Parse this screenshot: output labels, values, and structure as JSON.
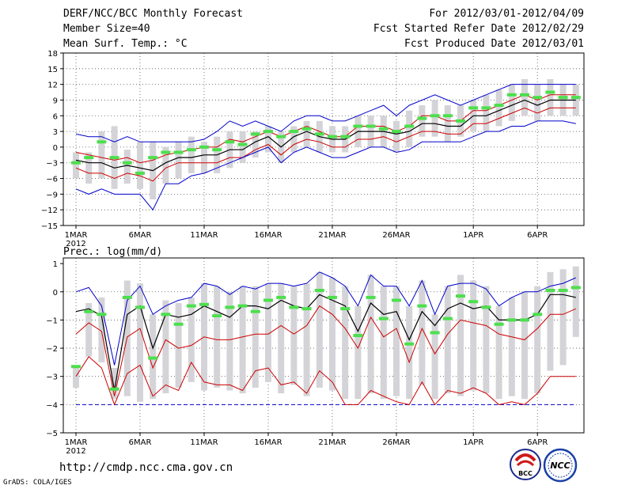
{
  "header": {
    "title": "DERF/NCC/BCC Monthly Forecast",
    "member_size": "Member Size=40",
    "top_label": "Mean Surf. Temp.: °C",
    "period": "For 2012/03/01-2012/04/09",
    "refer_date": "Fcst Started Refer Date 2012/02/29",
    "produced": "Fcst Produced Date 2012/03/01"
  },
  "footer": {
    "url": "http://cmdp.ncc.cma.gov.cn",
    "grads": "GrADS: COLA/IGES",
    "logo_bcc": "BCC",
    "logo_ncc": "NCC"
  },
  "colors": {
    "obs": "#4ddf4d",
    "box": "#d4d4d8",
    "blue": "#0000cc",
    "red": "#cc0000",
    "mean": "#000000"
  },
  "chart_data": [
    {
      "type": "line",
      "title": "Mean Surf. Temp.: °C",
      "x_ticks": [
        "1MAR",
        "6MAR",
        "11MAR",
        "16MAR",
        "21MAR",
        "26MAR",
        "1APR",
        "6APR"
      ],
      "x_tick_days": [
        0,
        5,
        10,
        15,
        20,
        25,
        31,
        36
      ],
      "x_year_label": "2012",
      "ylim": [
        -15,
        18
      ],
      "y_ticks": [
        -15,
        -12,
        -9,
        -6,
        -3,
        0,
        3,
        6,
        9,
        12,
        15,
        18
      ],
      "y_tick_labels": [
        "−15",
        "−12",
        "−9",
        "−6",
        "−3",
        "0",
        "3",
        "6",
        "9",
        "12",
        "15",
        "18"
      ],
      "grid": true,
      "days": [
        0,
        1,
        2,
        3,
        4,
        5,
        6,
        7,
        8,
        9,
        10,
        11,
        12,
        13,
        14,
        15,
        16,
        17,
        18,
        19,
        20,
        21,
        22,
        23,
        24,
        25,
        26,
        27,
        28,
        29,
        30,
        31,
        32,
        33,
        34,
        35,
        36,
        37,
        38,
        39
      ],
      "series": [
        {
          "name": "max",
          "color": "blue",
          "values": [
            2.5,
            2,
            2,
            1,
            2,
            1,
            1,
            1,
            1,
            1,
            1.5,
            3,
            5,
            4,
            5,
            4,
            3,
            5,
            6,
            6,
            5,
            5,
            6,
            7,
            8,
            6,
            8,
            9,
            10,
            9,
            8,
            9,
            10,
            11,
            12,
            12,
            12,
            12,
            12,
            12
          ]
        },
        {
          "name": "upper",
          "color": "red",
          "values": [
            -1,
            -1.5,
            -2,
            -2.5,
            -2,
            -3,
            -2.5,
            -1.5,
            -1,
            -0.5,
            0,
            0,
            1.5,
            1,
            2,
            3,
            2,
            3,
            4,
            3,
            2,
            2,
            4,
            4,
            4,
            3,
            4,
            6,
            6,
            5,
            5,
            7,
            7,
            8,
            9,
            10,
            9,
            10,
            10,
            10
          ]
        },
        {
          "name": "mean",
          "color": "mean",
          "values": [
            -2.5,
            -3,
            -3,
            -4,
            -3.5,
            -4,
            -4.5,
            -3,
            -2,
            -2,
            -1.5,
            -1.5,
            -0.5,
            -0.5,
            1,
            2,
            0,
            2,
            3,
            2,
            1.5,
            1.5,
            3,
            3,
            3,
            2.5,
            3,
            4.5,
            4.5,
            4,
            4,
            6,
            6,
            7,
            8,
            9,
            8,
            9,
            9,
            9
          ]
        },
        {
          "name": "lower",
          "color": "red",
          "values": [
            -4,
            -5,
            -5,
            -6,
            -5,
            -5.5,
            -6.5,
            -4,
            -3,
            -3,
            -3,
            -3,
            -2,
            -2,
            -0.5,
            0.5,
            -1.5,
            0.5,
            1.5,
            1,
            0,
            0,
            1.5,
            1.5,
            2,
            1,
            2,
            3,
            3,
            2.5,
            2.5,
            4.5,
            4.5,
            5.5,
            6.5,
            7.5,
            6.5,
            7.5,
            7.5,
            7.5
          ]
        },
        {
          "name": "min",
          "color": "blue",
          "values": [
            -8,
            -9,
            -8,
            -9,
            -9,
            -9,
            -12,
            -7,
            -7,
            -5.5,
            -5,
            -4,
            -3,
            -2,
            -1,
            0,
            -3,
            -1,
            0,
            -1,
            -2,
            -2,
            -1,
            0,
            0,
            -1,
            -0.5,
            1,
            1,
            1,
            1,
            2,
            3,
            3,
            4,
            4,
            5,
            5,
            5,
            4.5
          ]
        },
        {
          "name": "observed",
          "color": "obs",
          "values": [
            -3,
            -2,
            1,
            -2,
            -3,
            -5,
            -2,
            -1,
            -1,
            -0.5,
            0,
            -0.5,
            1,
            0.5,
            2.5,
            3,
            2,
            3,
            3.5,
            2.5,
            2,
            2,
            4,
            4,
            3.5,
            3,
            4,
            5.5,
            6,
            6,
            5,
            7.5,
            7.5,
            8,
            10,
            10,
            9.5,
            10.5,
            9.5,
            9.5
          ]
        }
      ],
      "boxes": {
        "name": "ensemble spread",
        "high": [
          -1,
          -1,
          3,
          4,
          -0.5,
          1,
          1,
          0,
          1,
          2,
          1,
          2,
          3,
          3,
          3,
          4,
          3,
          4,
          5,
          5,
          4,
          4,
          6,
          6,
          6,
          5,
          7,
          8,
          9,
          8,
          8,
          9,
          10,
          11,
          12,
          13,
          12,
          13,
          12,
          12
        ],
        "low": [
          -6,
          -7,
          -6,
          -8,
          -7,
          -8,
          -10,
          -7,
          -6,
          -5,
          -5,
          -5,
          -4,
          -3,
          -2,
          -1,
          -3,
          -1,
          0,
          -1,
          -1,
          -1,
          0,
          0,
          0,
          -1,
          0,
          2,
          2,
          1,
          2,
          3,
          3,
          4,
          5,
          6,
          5,
          6,
          6,
          6
        ]
      }
    },
    {
      "type": "line",
      "title": "Prec.: log(mm/d)",
      "x_ticks": [
        "1MAR",
        "6MAR",
        "11MAR",
        "16MAR",
        "21MAR",
        "26MAR",
        "1APR",
        "6APR"
      ],
      "x_tick_days": [
        0,
        5,
        10,
        15,
        20,
        25,
        31,
        36
      ],
      "x_year_label": "2012",
      "ylim": [
        -5,
        1.2
      ],
      "y_ticks": [
        -5,
        -4,
        -3,
        -2,
        -1,
        0,
        1
      ],
      "y_tick_labels": [
        "−5",
        "−4",
        "−3",
        "−2",
        "−1",
        "0",
        "1"
      ],
      "grid": true,
      "floor_line": -4,
      "days": [
        0,
        1,
        2,
        3,
        4,
        5,
        6,
        7,
        8,
        9,
        10,
        11,
        12,
        13,
        14,
        15,
        16,
        17,
        18,
        19,
        20,
        21,
        22,
        23,
        24,
        25,
        26,
        27,
        28,
        29,
        30,
        31,
        32,
        33,
        34,
        35,
        36,
        37,
        38,
        39
      ],
      "series": [
        {
          "name": "max",
          "color": "blue",
          "values": [
            0,
            0.15,
            -0.5,
            -2.6,
            -0.3,
            0.2,
            -0.8,
            -0.5,
            -0.3,
            -0.2,
            0.3,
            0.2,
            -0.1,
            0.2,
            0.1,
            0.3,
            0.3,
            0.2,
            0.3,
            0.7,
            0.5,
            0.2,
            -0.5,
            0.6,
            0.2,
            0.2,
            -0.5,
            0.4,
            -0.8,
            0.2,
            0.3,
            0.3,
            0.1,
            -0.5,
            -0.2,
            0,
            0,
            0.2,
            0.3,
            0.5
          ]
        },
        {
          "name": "mean",
          "color": "mean",
          "values": [
            -0.7,
            -0.6,
            -0.85,
            -3.5,
            -0.8,
            -0.5,
            -2,
            -0.8,
            -0.9,
            -0.8,
            -0.5,
            -0.7,
            -0.9,
            -0.5,
            -0.5,
            -0.6,
            -0.3,
            -0.5,
            -0.6,
            -0.1,
            -0.3,
            -0.5,
            -1.4,
            -0.4,
            -0.8,
            -0.7,
            -1.7,
            -0.7,
            -1.2,
            -0.6,
            -0.4,
            -0.6,
            -0.5,
            -1,
            -1,
            -1,
            -0.8,
            -0.1,
            -0.1,
            -0.2
          ]
        },
        {
          "name": "upper",
          "color": "red",
          "values": [
            -1.5,
            -1.1,
            -1.4,
            -3.7,
            -1.6,
            -1.3,
            -2.7,
            -1.7,
            -2,
            -1.9,
            -1.6,
            -1.7,
            -1.7,
            -1.6,
            -1.5,
            -1.5,
            -1.2,
            -1.5,
            -1.2,
            -0.5,
            -0.8,
            -1.3,
            -2,
            -0.9,
            -1.6,
            -1.3,
            -2.5,
            -1.3,
            -2.2,
            -1.5,
            -1,
            -1.1,
            -1.2,
            -1.5,
            -1.6,
            -1.7,
            -1.3,
            -0.8,
            -0.8,
            -0.6
          ]
        },
        {
          "name": "lower",
          "color": "red",
          "values": [
            -3,
            -2.3,
            -2.7,
            -4,
            -2.9,
            -2.6,
            -3.7,
            -3.3,
            -3.5,
            -2.5,
            -3.2,
            -3.3,
            -3.3,
            -3.5,
            -2.8,
            -2.7,
            -3.3,
            -3.2,
            -3.6,
            -2.8,
            -3.2,
            -4,
            -4,
            -3.5,
            -3.7,
            -3.9,
            -4,
            -3.2,
            -4,
            -3.5,
            -3.6,
            -3.4,
            -3.6,
            -4,
            -3.9,
            -4,
            -3.6,
            -3,
            -3,
            -3
          ]
        },
        {
          "name": "observed",
          "color": "obs",
          "values": [
            -2.65,
            -0.7,
            -0.8,
            -3.45,
            -0.2,
            -0.55,
            -2.35,
            -0.8,
            -1.15,
            -0.5,
            -0.45,
            -0.85,
            -0.55,
            -0.5,
            -0.7,
            -0.3,
            -0.2,
            -0.55,
            -0.6,
            0.05,
            -0.2,
            -0.6,
            -1.55,
            -0.2,
            -0.95,
            -0.3,
            -1.85,
            -0.5,
            -1.45,
            -0.95,
            -0.15,
            -0.35,
            -0.55,
            -1.15,
            -1.0,
            -1.0,
            -0.8,
            0.05,
            0.05,
            0.15
          ]
        }
      ],
      "boxes": {
        "name": "ensemble spread",
        "high": [
          -2.6,
          -0.4,
          -0.2,
          -2.7,
          0.4,
          0.3,
          -0.8,
          -0.3,
          -0.4,
          -0.2,
          0.3,
          0.2,
          0,
          0.2,
          0.2,
          0.3,
          0.3,
          0.2,
          0.3,
          0.7,
          0.5,
          0.2,
          -0.5,
          0.6,
          0.2,
          0.2,
          -0.5,
          0.4,
          -0.8,
          0.2,
          0.6,
          0.4,
          0.2,
          -0.5,
          -0.2,
          0,
          0.2,
          0.7,
          0.8,
          0.9
        ],
        "low": [
          -3.4,
          -2.3,
          -2.5,
          -3.8,
          -3.7,
          -3.9,
          -3.8,
          -3.6,
          -3.4,
          -3.2,
          -3.5,
          -3.4,
          -3.5,
          -3.6,
          -3.4,
          -3.2,
          -3.6,
          -3.3,
          -3.7,
          -3.4,
          -3.5,
          -3.8,
          -3.8,
          -3.6,
          -3.8,
          -3.7,
          -3.8,
          -3.3,
          -3.8,
          -3.6,
          -3.7,
          -3.5,
          -3.6,
          -3.8,
          -3.7,
          -3.8,
          -3.6,
          -2.8,
          -2.6,
          -1.6
        ]
      }
    }
  ]
}
